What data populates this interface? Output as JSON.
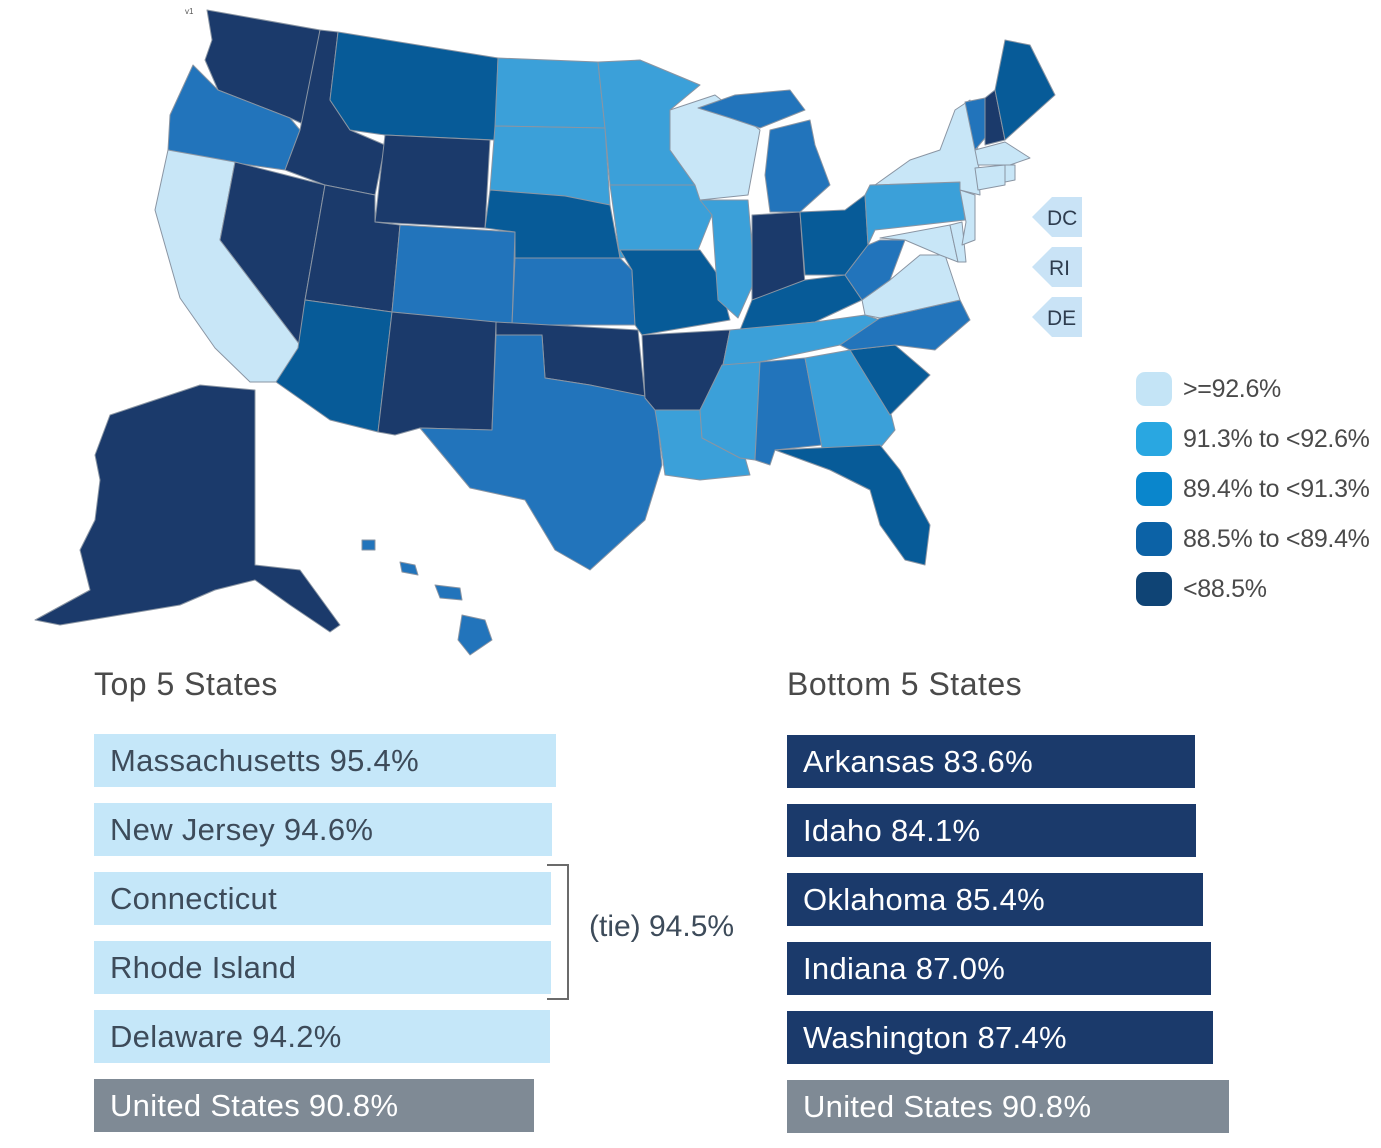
{
  "colors": {
    "c1": "#c8e6f7",
    "c2": "#3ba0d9",
    "c3": "#2274bb",
    "c4": "#075b98",
    "c5": "#1b3a6b",
    "legend_c1": "#c4e4f6",
    "legend_c2": "#29a7e1",
    "legend_c3": "#0a86cc",
    "legend_c4": "#0c62a6",
    "legend_c5": "#0f4475"
  },
  "map": {
    "version_label": "v1",
    "callouts": [
      "DC",
      "RI",
      "DE"
    ]
  },
  "legend": [
    {
      "label": ">=92.6%",
      "color_key": "legend_c1"
    },
    {
      "label": "91.3% to <92.6%",
      "color_key": "legend_c2"
    },
    {
      "label": "89.4% to <91.3%",
      "color_key": "legend_c3"
    },
    {
      "label": "88.5% to <89.4%",
      "color_key": "legend_c4"
    },
    {
      "label": "<88.5%",
      "color_key": "legend_c5"
    }
  ],
  "top": {
    "title": "Top 5 States",
    "items": [
      "Massachusetts 95.4%",
      "New Jersey 94.6%",
      "Connecticut",
      "Rhode Island",
      "Delaware 94.2%"
    ],
    "tie_label": "(tie) 94.5%",
    "us": "United States 90.8%"
  },
  "bottom": {
    "title": "Bottom 5 States",
    "items": [
      "Arkansas 83.6%",
      "Idaho 84.1%",
      "Oklahoma 85.4%",
      "Indiana 87.0%",
      "Washington 87.4%"
    ],
    "us": "United States 90.8%"
  }
}
